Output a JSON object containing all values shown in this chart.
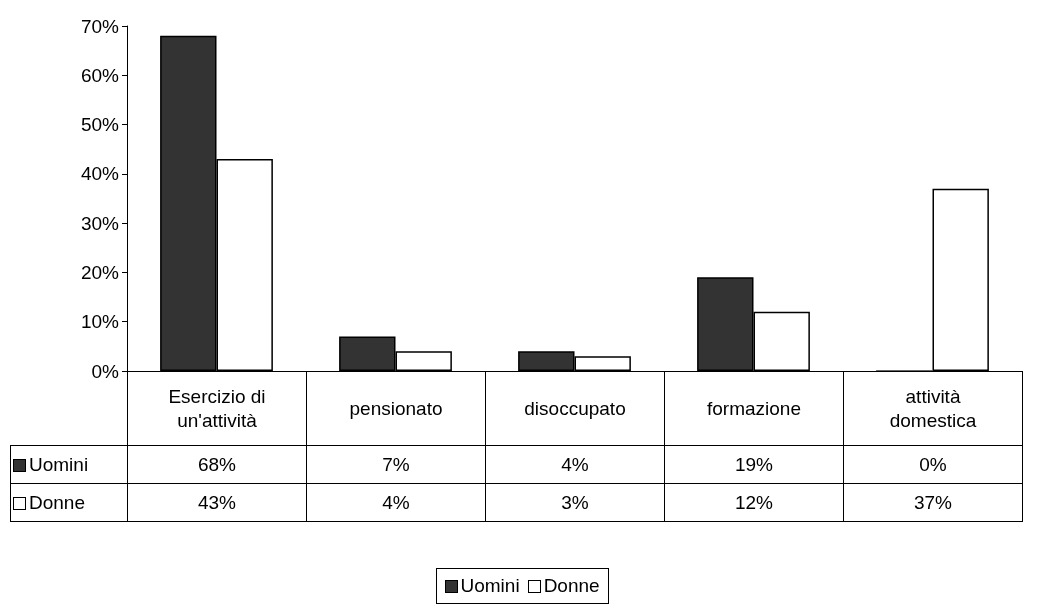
{
  "chart_data": {
    "type": "bar",
    "categories": [
      "Esercizio di un'attività",
      "pensionato",
      "disoccupato",
      "formazione",
      "attività domestica"
    ],
    "series": [
      {
        "name": "Uomini",
        "color": "#333333",
        "values": [
          68,
          7,
          4,
          19,
          0
        ],
        "value_labels": [
          "68%",
          "7%",
          "4%",
          "19%",
          "0%"
        ]
      },
      {
        "name": "Donne",
        "color": "#ffffff",
        "values": [
          43,
          4,
          3,
          12,
          37
        ],
        "value_labels": [
          "43%",
          "4%",
          "3%",
          "12%",
          "37%"
        ]
      }
    ],
    "ylim": [
      0,
      70
    ],
    "yticks": [
      {
        "value": 0,
        "label": "0%"
      },
      {
        "value": 10,
        "label": "10%"
      },
      {
        "value": 20,
        "label": "20%"
      },
      {
        "value": 30,
        "label": "30%"
      },
      {
        "value": 40,
        "label": "40%"
      },
      {
        "value": 50,
        "label": "50%"
      },
      {
        "value": 60,
        "label": "60%"
      },
      {
        "value": 70,
        "label": "70%"
      }
    ],
    "grid": false,
    "legend": "bottom"
  }
}
